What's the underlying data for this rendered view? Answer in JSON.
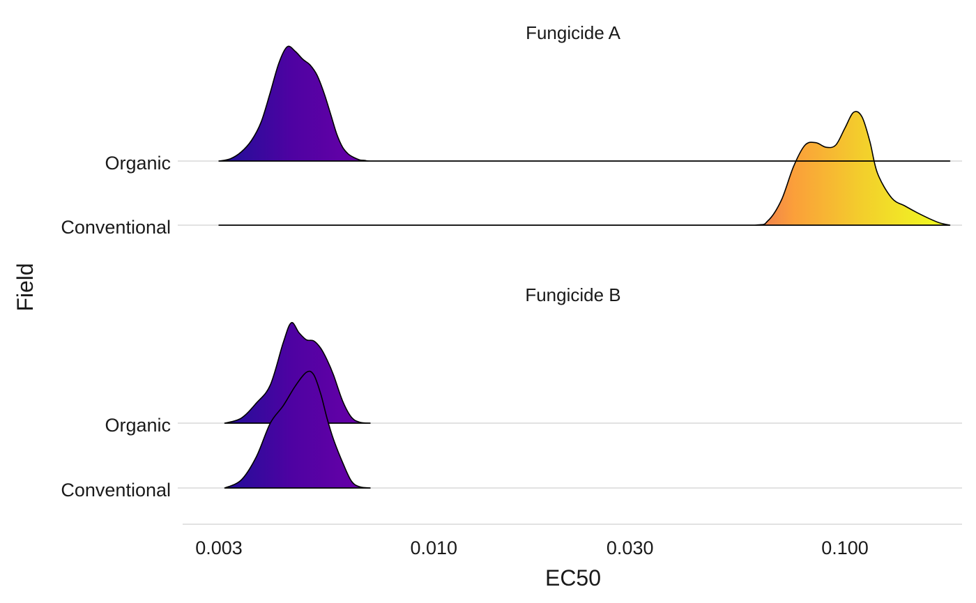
{
  "chart_data": {
    "type": "ridgeline",
    "xlabel": "EC50",
    "ylabel": "Field",
    "x_scale": "log10",
    "x_ticks": [
      0.003,
      0.01,
      0.03,
      0.1
    ],
    "x_tick_labels": [
      "0.003",
      "0.010",
      "0.030",
      "0.100"
    ],
    "xlim": [
      0.0026,
      0.23
    ],
    "x_range": [
      0.003,
      0.18
    ],
    "grid": "horizontal",
    "fill": "gradient by EC50 value (plasma palette)",
    "gradient_stops": [
      "#1e1098",
      "#4e02a2",
      "#6a00a8",
      "#ed7953",
      "#fb9f3a",
      "#f3ce2c",
      "#f0f921"
    ],
    "panels": [
      {
        "title": "Fungicide A",
        "categories": [
          "Organic",
          "Conventional"
        ],
        "series": [
          {
            "name": "Organic",
            "density_x": [
              0.003,
              0.0032,
              0.0034,
              0.0036,
              0.0038,
              0.004,
              0.0042,
              0.0044,
              0.0046,
              0.0048,
              0.005,
              0.0052,
              0.0054,
              0.0056,
              0.0058,
              0.006,
              0.0062,
              0.0064,
              0.0066,
              0.0068,
              0.007,
              0.18
            ],
            "density_y": [
              0.0,
              0.02,
              0.08,
              0.18,
              0.34,
              0.6,
              0.86,
              1.0,
              0.96,
              0.89,
              0.84,
              0.75,
              0.6,
              0.42,
              0.24,
              0.12,
              0.06,
              0.03,
              0.01,
              0.005,
              0.0,
              0.0
            ]
          },
          {
            "name": "Conventional",
            "density_x": [
              0.003,
              0.06,
              0.065,
              0.07,
              0.075,
              0.08,
              0.085,
              0.09,
              0.095,
              0.1,
              0.105,
              0.11,
              0.115,
              0.12,
              0.13,
              0.14,
              0.15,
              0.16,
              0.17,
              0.18
            ],
            "density_y": [
              0.0,
              0.0,
              0.04,
              0.22,
              0.52,
              0.71,
              0.73,
              0.69,
              0.71,
              0.86,
              1.0,
              0.96,
              0.74,
              0.46,
              0.24,
              0.17,
              0.11,
              0.06,
              0.02,
              0.0
            ]
          }
        ]
      },
      {
        "title": "Fungicide B",
        "categories": [
          "Organic",
          "Conventional"
        ],
        "series": [
          {
            "name": "Organic",
            "density_x": [
              0.0031,
              0.0034,
              0.0037,
              0.004,
              0.0043,
              0.0045,
              0.0047,
              0.0049,
              0.0051,
              0.0053,
              0.0055,
              0.0057,
              0.006,
              0.0063,
              0.0066,
              0.007
            ],
            "density_y": [
              0.0,
              0.05,
              0.2,
              0.38,
              0.8,
              1.0,
              0.9,
              0.83,
              0.82,
              0.75,
              0.63,
              0.48,
              0.22,
              0.06,
              0.01,
              0.0
            ]
          },
          {
            "name": "Conventional",
            "density_x": [
              0.0031,
              0.0034,
              0.0037,
              0.004,
              0.0043,
              0.0046,
              0.0049,
              0.0051,
              0.0053,
              0.0055,
              0.0057,
              0.006,
              0.0063,
              0.0066,
              0.007
            ],
            "density_y": [
              0.0,
              0.07,
              0.27,
              0.56,
              0.71,
              0.88,
              1.0,
              0.98,
              0.82,
              0.6,
              0.42,
              0.22,
              0.06,
              0.01,
              0.0
            ]
          }
        ]
      }
    ]
  }
}
